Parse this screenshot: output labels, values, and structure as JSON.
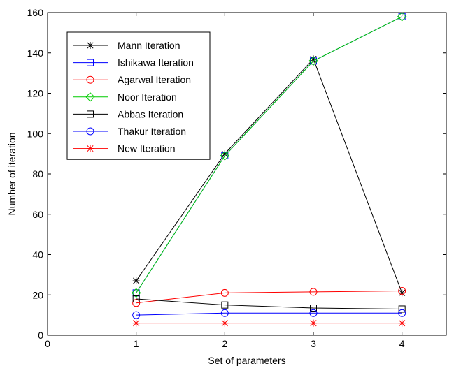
{
  "chart_data": {
    "type": "line",
    "xlabel": "Set of parameters",
    "ylabel": "Number of iteration",
    "xlim": [
      0,
      4.5
    ],
    "ylim": [
      0,
      160
    ],
    "xticks": [
      0,
      1,
      2,
      3,
      4
    ],
    "yticks": [
      0,
      20,
      40,
      60,
      80,
      100,
      120,
      140,
      160
    ],
    "grid": false,
    "legend_position": "top-left",
    "x": [
      1,
      2,
      3,
      4
    ],
    "series": [
      {
        "name": "Mann Iteration",
        "values": [
          27,
          90,
          137,
          21
        ],
        "color": "#000000",
        "marker": "asterisk"
      },
      {
        "name": "Ishikawa Iteration",
        "values": [
          21,
          89,
          136,
          158
        ],
        "color": "#0000ff",
        "marker": "square"
      },
      {
        "name": "Agarwal Iteration",
        "values": [
          16,
          21,
          21.5,
          22
        ],
        "color": "#ff0000",
        "marker": "circle"
      },
      {
        "name": "Noor Iteration",
        "values": [
          21,
          89,
          136,
          158
        ],
        "color": "#00cc00",
        "marker": "diamond"
      },
      {
        "name": "Abbas Iteration",
        "values": [
          18,
          15,
          13.5,
          13
        ],
        "color": "#000000",
        "marker": "square"
      },
      {
        "name": "Thakur Iteration",
        "values": [
          10,
          11,
          11,
          11
        ],
        "color": "#0000ff",
        "marker": "circle"
      },
      {
        "name": "New Iteration",
        "values": [
          6,
          6,
          6,
          6
        ],
        "color": "#ff0000",
        "marker": "asterisk"
      }
    ]
  }
}
